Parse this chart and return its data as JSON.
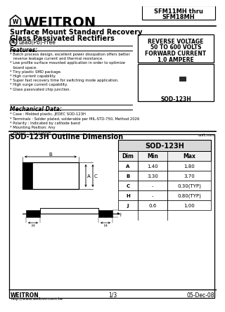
{
  "title_company": "WEITRON",
  "part_number_line1": "SFM11MH thru",
  "part_number_line2": "SFM18MH",
  "subtitle1": "Surface Mount Standard Recovery",
  "subtitle2": "Glass Passivated Rectifiers",
  "lead_free": "Lead(Pb)-Free",
  "features_title": "Features:",
  "features": [
    "* Batch process design, excellent power dissipation offers better",
    "   reverse leakage current and thermal resistance.",
    "* Low profile surface mounted application in order to optimize",
    "   board space.",
    "* Tiny plastic SMD package.",
    "* High current capability.",
    "* Super fast recovery time for switching mode application.",
    "* High surge current capability.",
    "* Glass passivated chip junction."
  ],
  "mech_title": "Mechanical Data:",
  "mech": [
    "* Case : Molded plastic, JEDEC SOD-123H",
    "* Terminals : Solder plated, solderable per MIL-STD-750, Method 2026",
    "* Polarity : Indicated by cathode band",
    "* Mounting Position: Any",
    "* Weight : 0.013 gm/R"
  ],
  "spec_box_lines": [
    "REVERSE VOLTAGE",
    "50 TO 600 VOLTS",
    "FORWARD CURRENT",
    "1.0 AMPERE"
  ],
  "package_label": "SOD-123H",
  "outline_title": "SOD-123H Outline Dimension",
  "unit_label": "unit:mm",
  "table_title": "SOD-123H",
  "table_headers": [
    "Dim",
    "Min",
    "Max"
  ],
  "table_rows": [
    [
      "A",
      "1.40",
      "1.80"
    ],
    [
      "B",
      "3.30",
      "3.70"
    ],
    [
      "C",
      "-",
      "0.30(TYP)"
    ],
    [
      "H",
      "-",
      "0.80(TYP)"
    ],
    [
      "J",
      "0.6",
      "1.00"
    ]
  ],
  "footer_left": "WEITRON",
  "footer_left2": "http://www.weitron.com.tw",
  "footer_mid": "1/3",
  "footer_right": "05-Dec-08",
  "bg_color": "#ffffff"
}
